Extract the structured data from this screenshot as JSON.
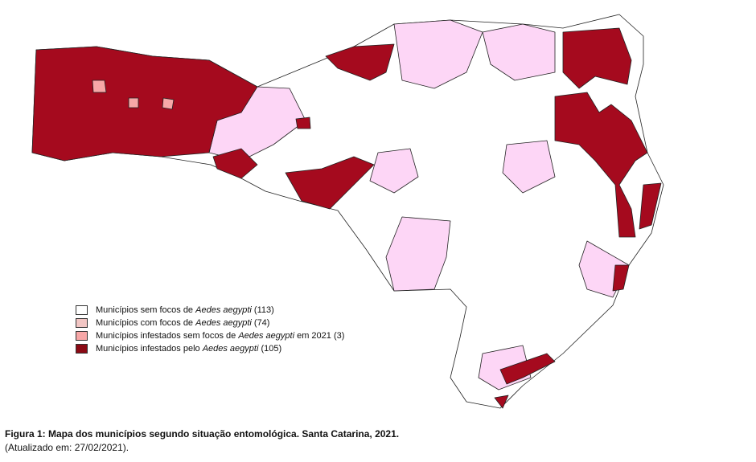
{
  "legend": [
    {
      "text": "Municípios sem focos de ",
      "italic": "Aedes aegypti",
      "suffix": " (113)",
      "color": "#ffffff"
    },
    {
      "text": "Municípios com focos de ",
      "italic": "Aedes aegypti",
      "suffix": " (74)",
      "color": "#f2c6c4"
    },
    {
      "text": "Municípios infestados sem focos de ",
      "italic": "Aedes aegypti",
      "suffix": " em 2021 (3)",
      "color": "#f7a7a7"
    },
    {
      "text": "Municípios infestados pelo ",
      "italic": "Aedes aegypti",
      "suffix": " (105)",
      "color": "#8b0a14"
    }
  ],
  "caption": {
    "title": "Figura 1: Mapa dos municípios segundo situação entomológica. Santa Catarina, 2021.",
    "note": "(Atualizado em: 27/02/2021)."
  }
}
